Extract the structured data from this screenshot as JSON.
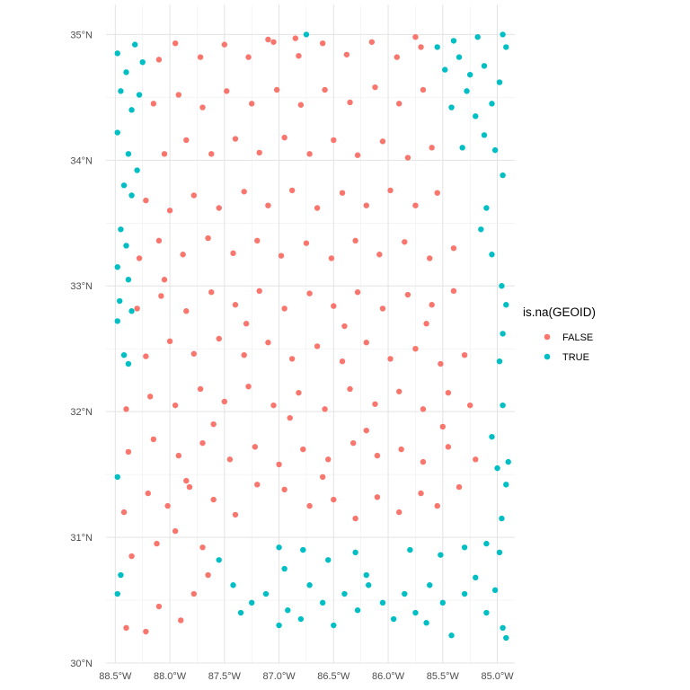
{
  "chart_data": {
    "type": "scatter",
    "x_axis": {
      "ticks": [
        -88.5,
        -88.0,
        -87.5,
        -87.0,
        -86.5,
        -86.0,
        -85.5,
        -85.0
      ],
      "tick_labels": [
        "88.5°W",
        "88.0°W",
        "87.5°W",
        "87.0°W",
        "86.5°W",
        "86.0°W",
        "85.5°W",
        "85.0°W"
      ],
      "range": [
        -88.585,
        -84.84
      ]
    },
    "y_axis": {
      "ticks": [
        30,
        31,
        32,
        33,
        34,
        35
      ],
      "tick_labels": [
        "30°N",
        "31°N",
        "32°N",
        "33°N",
        "34°N",
        "35°N"
      ],
      "range": [
        30,
        35.01
      ]
    },
    "grid": true,
    "legend": {
      "title": "is.na(GEOID)",
      "position": "right",
      "entries": [
        {
          "label": "FALSE",
          "color": "#F8766D"
        },
        {
          "label": "TRUE",
          "color": "#00BFC4"
        }
      ]
    },
    "series": [
      {
        "name": "FALSE",
        "color": "#F8766D",
        "points": [
          [
            -88.4,
            30.28
          ],
          [
            -88.22,
            30.25
          ],
          [
            -88.1,
            30.45
          ],
          [
            -87.9,
            30.34
          ],
          [
            -87.78,
            30.55
          ],
          [
            -87.65,
            30.7
          ],
          [
            -88.35,
            30.85
          ],
          [
            -88.12,
            30.95
          ],
          [
            -87.95,
            31.05
          ],
          [
            -87.7,
            30.92
          ],
          [
            -88.42,
            31.2
          ],
          [
            -88.2,
            31.35
          ],
          [
            -88.02,
            31.25
          ],
          [
            -87.82,
            31.4
          ],
          [
            -87.6,
            31.3
          ],
          [
            -87.4,
            31.18
          ],
          [
            -87.2,
            31.42
          ],
          [
            -86.95,
            31.38
          ],
          [
            -86.72,
            31.25
          ],
          [
            -86.5,
            31.3
          ],
          [
            -86.3,
            31.15
          ],
          [
            -86.1,
            31.32
          ],
          [
            -85.9,
            31.2
          ],
          [
            -85.7,
            31.35
          ],
          [
            -85.55,
            31.25
          ],
          [
            -85.35,
            31.4
          ],
          [
            -85.2,
            31.62
          ],
          [
            -85.45,
            31.72
          ],
          [
            -85.68,
            31.6
          ],
          [
            -85.88,
            31.7
          ],
          [
            -86.1,
            31.65
          ],
          [
            -86.32,
            31.75
          ],
          [
            -86.55,
            31.62
          ],
          [
            -86.78,
            31.7
          ],
          [
            -87.0,
            31.58
          ],
          [
            -87.22,
            31.72
          ],
          [
            -87.45,
            31.62
          ],
          [
            -87.7,
            31.75
          ],
          [
            -87.92,
            31.65
          ],
          [
            -88.15,
            31.78
          ],
          [
            -88.38,
            31.68
          ],
          [
            -88.4,
            32.02
          ],
          [
            -88.18,
            32.12
          ],
          [
            -87.95,
            32.05
          ],
          [
            -87.72,
            32.18
          ],
          [
            -87.5,
            32.08
          ],
          [
            -87.28,
            32.2
          ],
          [
            -87.05,
            32.05
          ],
          [
            -86.82,
            32.15
          ],
          [
            -86.58,
            32.02
          ],
          [
            -86.35,
            32.18
          ],
          [
            -86.12,
            32.06
          ],
          [
            -85.9,
            32.16
          ],
          [
            -85.68,
            32.02
          ],
          [
            -85.45,
            32.15
          ],
          [
            -85.25,
            32.05
          ],
          [
            -85.3,
            32.45
          ],
          [
            -85.52,
            32.38
          ],
          [
            -85.75,
            32.5
          ],
          [
            -85.98,
            32.42
          ],
          [
            -86.2,
            32.55
          ],
          [
            -86.42,
            32.4
          ],
          [
            -86.65,
            32.52
          ],
          [
            -86.88,
            32.42
          ],
          [
            -87.1,
            32.55
          ],
          [
            -87.32,
            32.45
          ],
          [
            -87.55,
            32.58
          ],
          [
            -87.78,
            32.46
          ],
          [
            -88.0,
            32.56
          ],
          [
            -88.22,
            32.44
          ],
          [
            -88.3,
            32.82
          ],
          [
            -88.08,
            32.92
          ],
          [
            -87.85,
            32.8
          ],
          [
            -87.62,
            32.95
          ],
          [
            -87.4,
            32.85
          ],
          [
            -87.18,
            32.96
          ],
          [
            -86.95,
            32.82
          ],
          [
            -86.72,
            32.94
          ],
          [
            -86.5,
            32.84
          ],
          [
            -86.28,
            32.95
          ],
          [
            -86.05,
            32.82
          ],
          [
            -85.82,
            32.93
          ],
          [
            -85.6,
            32.85
          ],
          [
            -85.4,
            32.96
          ],
          [
            -85.4,
            33.3
          ],
          [
            -85.62,
            33.22
          ],
          [
            -85.85,
            33.35
          ],
          [
            -86.08,
            33.25
          ],
          [
            -86.3,
            33.36
          ],
          [
            -86.52,
            33.22
          ],
          [
            -86.75,
            33.34
          ],
          [
            -86.98,
            33.24
          ],
          [
            -87.2,
            33.36
          ],
          [
            -87.42,
            33.26
          ],
          [
            -87.65,
            33.38
          ],
          [
            -87.88,
            33.25
          ],
          [
            -88.1,
            33.36
          ],
          [
            -88.28,
            33.22
          ],
          [
            -88.22,
            33.68
          ],
          [
            -88.0,
            33.6
          ],
          [
            -87.78,
            33.72
          ],
          [
            -87.55,
            33.62
          ],
          [
            -87.32,
            33.75
          ],
          [
            -87.1,
            33.64
          ],
          [
            -86.88,
            33.76
          ],
          [
            -86.65,
            33.62
          ],
          [
            -86.42,
            33.74
          ],
          [
            -86.2,
            33.64
          ],
          [
            -85.98,
            33.76
          ],
          [
            -85.75,
            33.64
          ],
          [
            -85.55,
            33.74
          ],
          [
            -85.6,
            34.1
          ],
          [
            -85.82,
            34.02
          ],
          [
            -86.05,
            34.15
          ],
          [
            -86.28,
            34.04
          ],
          [
            -86.5,
            34.16
          ],
          [
            -86.72,
            34.05
          ],
          [
            -86.95,
            34.18
          ],
          [
            -87.18,
            34.06
          ],
          [
            -87.4,
            34.17
          ],
          [
            -87.62,
            34.05
          ],
          [
            -87.85,
            34.16
          ],
          [
            -88.05,
            34.05
          ],
          [
            -88.15,
            34.45
          ],
          [
            -87.92,
            34.52
          ],
          [
            -87.7,
            34.42
          ],
          [
            -87.48,
            34.55
          ],
          [
            -87.25,
            34.45
          ],
          [
            -87.02,
            34.56
          ],
          [
            -86.8,
            34.44
          ],
          [
            -86.58,
            34.56
          ],
          [
            -86.35,
            34.46
          ],
          [
            -86.12,
            34.58
          ],
          [
            -85.9,
            34.45
          ],
          [
            -85.68,
            34.56
          ],
          [
            -85.7,
            34.9
          ],
          [
            -85.92,
            34.82
          ],
          [
            -86.15,
            34.94
          ],
          [
            -86.38,
            34.84
          ],
          [
            -86.6,
            34.93
          ],
          [
            -86.82,
            34.83
          ],
          [
            -87.05,
            34.94
          ],
          [
            -87.28,
            34.82
          ],
          [
            -87.5,
            34.92
          ],
          [
            -87.72,
            34.82
          ],
          [
            -87.95,
            34.93
          ],
          [
            -88.1,
            34.8
          ],
          [
            -87.1,
            34.96
          ],
          [
            -86.85,
            34.97
          ],
          [
            -85.75,
            34.98
          ],
          [
            -88.05,
            33.05
          ],
          [
            -87.3,
            32.7
          ],
          [
            -86.4,
            32.68
          ],
          [
            -85.65,
            32.7
          ],
          [
            -86.9,
            31.95
          ],
          [
            -87.6,
            31.9
          ],
          [
            -86.2,
            31.85
          ],
          [
            -85.5,
            31.88
          ],
          [
            -87.85,
            31.45
          ],
          [
            -86.6,
            31.48
          ]
        ]
      },
      {
        "name": "TRUE",
        "color": "#00BFC4",
        "points": [
          [
            -88.48,
            34.85
          ],
          [
            -88.4,
            34.7
          ],
          [
            -88.32,
            34.92
          ],
          [
            -88.25,
            34.78
          ],
          [
            -88.45,
            34.55
          ],
          [
            -88.35,
            34.4
          ],
          [
            -88.28,
            34.52
          ],
          [
            -88.48,
            34.22
          ],
          [
            -88.38,
            34.05
          ],
          [
            -88.3,
            33.92
          ],
          [
            -88.42,
            33.8
          ],
          [
            -88.35,
            33.72
          ],
          [
            -88.45,
            33.45
          ],
          [
            -88.4,
            33.32
          ],
          [
            -88.48,
            33.15
          ],
          [
            -88.38,
            33.05
          ],
          [
            -88.46,
            32.88
          ],
          [
            -88.35,
            32.8
          ],
          [
            -88.48,
            32.72
          ],
          [
            -88.42,
            32.45
          ],
          [
            -88.38,
            32.38
          ],
          [
            -88.48,
            31.48
          ],
          [
            -88.45,
            30.7
          ],
          [
            -88.48,
            30.55
          ],
          [
            -87.55,
            30.82
          ],
          [
            -87.42,
            30.62
          ],
          [
            -87.25,
            30.48
          ],
          [
            -87.12,
            30.55
          ],
          [
            -87.0,
            30.3
          ],
          [
            -86.92,
            30.42
          ],
          [
            -86.8,
            30.35
          ],
          [
            -86.72,
            30.62
          ],
          [
            -86.6,
            30.48
          ],
          [
            -86.5,
            30.3
          ],
          [
            -86.4,
            30.55
          ],
          [
            -86.28,
            30.42
          ],
          [
            -86.18,
            30.62
          ],
          [
            -86.05,
            30.48
          ],
          [
            -85.95,
            30.35
          ],
          [
            -85.85,
            30.55
          ],
          [
            -85.75,
            30.4
          ],
          [
            -85.62,
            30.62
          ],
          [
            -85.5,
            30.48
          ],
          [
            -85.42,
            30.22
          ],
          [
            -85.3,
            30.55
          ],
          [
            -85.2,
            30.68
          ],
          [
            -85.1,
            30.4
          ],
          [
            -85.02,
            30.58
          ],
          [
            -84.95,
            30.28
          ],
          [
            -84.92,
            30.2
          ],
          [
            -87.0,
            30.92
          ],
          [
            -86.78,
            30.9
          ],
          [
            -86.55,
            30.82
          ],
          [
            -86.3,
            30.88
          ],
          [
            -85.8,
            30.9
          ],
          [
            -85.52,
            30.86
          ],
          [
            -85.3,
            30.92
          ],
          [
            -85.1,
            30.95
          ],
          [
            -84.98,
            30.88
          ],
          [
            -84.96,
            31.15
          ],
          [
            -84.92,
            31.42
          ],
          [
            -85.0,
            31.55
          ],
          [
            -85.05,
            31.8
          ],
          [
            -84.95,
            32.05
          ],
          [
            -84.98,
            32.4
          ],
          [
            -84.95,
            32.62
          ],
          [
            -84.92,
            32.85
          ],
          [
            -84.96,
            33.0
          ],
          [
            -85.05,
            33.25
          ],
          [
            -85.15,
            33.45
          ],
          [
            -85.1,
            33.62
          ],
          [
            -84.95,
            33.88
          ],
          [
            -85.02,
            34.08
          ],
          [
            -85.12,
            34.2
          ],
          [
            -85.2,
            34.35
          ],
          [
            -85.05,
            34.45
          ],
          [
            -84.98,
            34.62
          ],
          [
            -85.12,
            34.75
          ],
          [
            -85.25,
            34.68
          ],
          [
            -85.35,
            34.82
          ],
          [
            -85.48,
            34.72
          ],
          [
            -85.55,
            34.9
          ],
          [
            -85.4,
            34.95
          ],
          [
            -85.28,
            34.55
          ],
          [
            -85.42,
            34.42
          ],
          [
            -84.92,
            34.9
          ],
          [
            -85.18,
            34.98
          ],
          [
            -84.95,
            35.0
          ],
          [
            -86.75,
            35.0
          ],
          [
            -85.32,
            34.1
          ],
          [
            -86.95,
            30.75
          ],
          [
            -86.2,
            30.7
          ],
          [
            -85.65,
            30.32
          ],
          [
            -87.35,
            30.4
          ],
          [
            -84.9,
            31.6
          ]
        ]
      }
    ]
  }
}
